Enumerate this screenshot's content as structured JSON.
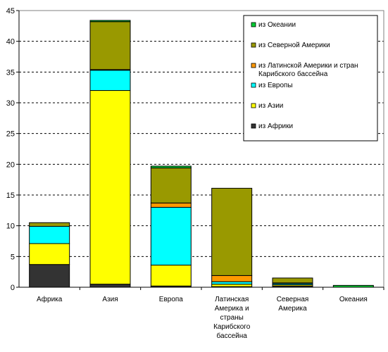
{
  "chart_data": {
    "type": "bar",
    "stacked": true,
    "title": "",
    "xlabel": "",
    "ylabel": "",
    "ylim": [
      0,
      45
    ],
    "yticks": [
      0,
      5,
      10,
      15,
      20,
      25,
      30,
      35,
      40,
      45
    ],
    "grid": "horizontal-dashed",
    "legend_position": "top-right",
    "categories": [
      "Африка",
      "Азия",
      "Европа",
      "Латинская Америка и страны Карибского бассейна",
      "Северная Америка",
      "Океания"
    ],
    "category_lines": [
      [
        "Африка"
      ],
      [
        "Азия"
      ],
      [
        "Европа"
      ],
      [
        "Латинская",
        "Америка и",
        "страны",
        "Карибского",
        "бассейна"
      ],
      [
        "Северная",
        "Америка"
      ],
      [
        "Океания"
      ]
    ],
    "series": [
      {
        "name": "из Африки",
        "color": "#333333",
        "values": [
          3.7,
          0.5,
          0.2,
          0.1,
          0.2,
          0.0
        ]
      },
      {
        "name": "из Азии",
        "color": "#ffff00",
        "values": [
          3.4,
          31.5,
          3.4,
          0.4,
          0.2,
          0.0
        ]
      },
      {
        "name": "из Европы",
        "color": "#00ffff",
        "values": [
          2.8,
          3.3,
          9.4,
          0.4,
          0.2,
          0.0
        ]
      },
      {
        "name": "из Латинской Америки и стран Карибского бассейна",
        "color": "#ff9900",
        "values": [
          0.0,
          0.1,
          0.7,
          1.0,
          0.1,
          0.0
        ]
      },
      {
        "name": "из Северной Америки",
        "color": "#999900",
        "values": [
          0.6,
          7.8,
          5.7,
          14.2,
          0.8,
          0.0
        ]
      },
      {
        "name": "из Океании",
        "color": "#00cc33",
        "values": [
          0.0,
          0.2,
          0.3,
          0.0,
          0.0,
          0.3
        ]
      }
    ],
    "legend_order": [
      {
        "series": 5,
        "lines": [
          "из Океании"
        ]
      },
      {
        "series": 4,
        "lines": [
          "из Северной Америки"
        ]
      },
      {
        "series": 3,
        "lines": [
          "из Латинской Америки и стран",
          "Карибского бассейна"
        ]
      },
      {
        "series": 2,
        "lines": [
          "из Европы"
        ]
      },
      {
        "series": 1,
        "lines": [
          "из Азии"
        ]
      },
      {
        "series": 0,
        "lines": [
          "из Африки"
        ]
      }
    ]
  }
}
